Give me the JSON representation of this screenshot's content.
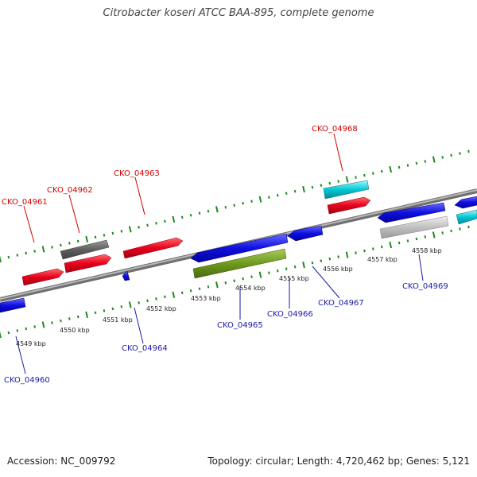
{
  "title": "Citrobacter koseri ATCC BAA-895, complete genome",
  "footer": {
    "accession": "Accession: NC_009792",
    "stats": "Topology: circular; Length: 4,720,462 bp; Genes: 5,121"
  },
  "colors": {
    "forward_gene": "#e8001c",
    "reverse_gene": "#1010e0",
    "rna_gene": "#00c8d4",
    "pseudo_gene_dark": "#606060",
    "pseudo_gene_light": "#c0c0c0",
    "other_gene": "#6e9a1e",
    "backbone": "#8a8a8a",
    "tick": "#1e8a1e"
  },
  "scale_labels": [
    "4549 kbp",
    "4550 kbp",
    "4551 kbp",
    "4552 kbp",
    "4553 kbp",
    "4554 kbp",
    "4555 kbp",
    "4556 kbp",
    "4557 kbp",
    "4558 kbp"
  ],
  "forward_genes": [
    {
      "label": "CKO_04961"
    },
    {
      "label": "CKO_04962"
    },
    {
      "label": "CKO_04963"
    },
    {
      "label": "CKO_04968"
    }
  ],
  "reverse_genes": [
    {
      "label": "CKO_04960"
    },
    {
      "label": "CKO_04964"
    },
    {
      "label": "CKO_04965"
    },
    {
      "label": "CKO_04966"
    },
    {
      "label": "CKO_04967"
    },
    {
      "label": "CKO_04969"
    }
  ]
}
